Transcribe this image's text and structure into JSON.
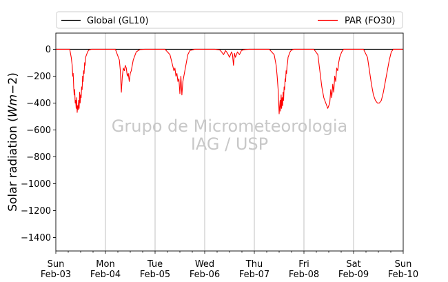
{
  "chart_data": {
    "type": "line",
    "ylabel": "Solar radiation ($Wm−2$)",
    "ylabel_text": "Solar radiation (",
    "ylabel_math": "Wm",
    "ylabel_math_suffix": "−2",
    "ylabel_close": ")",
    "ylim": [
      -1500,
      120
    ],
    "xlim": [
      "2019-02-03",
      "2019-02-10"
    ],
    "y_ticks": [
      0,
      -200,
      -400,
      -600,
      -800,
      -1000,
      -1200,
      -1400
    ],
    "y_tick_labels": [
      "0",
      "−200",
      "−400",
      "−600",
      "−800",
      "−1000",
      "−1200",
      "−1400"
    ],
    "x_ticks": [
      {
        "day": "Sun",
        "date": "Feb-03"
      },
      {
        "day": "Mon",
        "date": "Feb-04"
      },
      {
        "day": "Tue",
        "date": "Feb-05"
      },
      {
        "day": "Wed",
        "date": "Feb-06"
      },
      {
        "day": "Thu",
        "date": "Feb-07"
      },
      {
        "day": "Fri",
        "date": "Feb-08"
      },
      {
        "day": "Sat",
        "date": "Feb-09"
      },
      {
        "day": "Sun",
        "date": "Feb-10"
      }
    ],
    "grid": "vertical-major",
    "legend_placement": "top-outside",
    "watermark": [
      "Grupo de Micrometeorologia",
      "IAG / USP"
    ],
    "series": [
      {
        "name": "Global (GL10)",
        "color": "#000000",
        "x_days": [
          0,
          7
        ],
        "y": [
          0,
          0
        ]
      },
      {
        "name": "PAR (FO30)",
        "color": "#ff0000",
        "x_days": [
          0,
          0.28,
          0.31,
          0.33,
          0.34,
          0.35,
          0.36,
          0.37,
          0.38,
          0.39,
          0.4,
          0.41,
          0.42,
          0.43,
          0.44,
          0.45,
          0.46,
          0.47,
          0.48,
          0.49,
          0.5,
          0.51,
          0.52,
          0.53,
          0.54,
          0.55,
          0.56,
          0.57,
          0.58,
          0.59,
          0.6,
          0.62,
          0.64,
          0.66,
          0.68,
          0.7,
          0.72,
          0.8,
          1.2,
          1.28,
          1.3,
          1.32,
          1.34,
          1.36,
          1.38,
          1.4,
          1.42,
          1.44,
          1.46,
          1.48,
          1.5,
          1.52,
          1.54,
          1.56,
          1.58,
          1.6,
          1.62,
          1.66,
          1.7,
          1.8,
          2.2,
          2.3,
          2.34,
          2.38,
          2.4,
          2.42,
          2.44,
          2.46,
          2.48,
          2.5,
          2.52,
          2.54,
          2.56,
          2.58,
          2.6,
          2.62,
          2.64,
          2.66,
          2.7,
          2.8,
          3.2,
          3.3,
          3.34,
          3.38,
          3.42,
          3.46,
          3.5,
          3.54,
          3.56,
          3.58,
          3.6,
          3.62,
          3.66,
          3.7,
          3.74,
          3.78,
          3.82,
          3.9,
          4.2,
          4.3,
          4.4,
          4.44,
          4.46,
          4.48,
          4.5,
          4.52,
          4.53,
          4.54,
          4.55,
          4.56,
          4.57,
          4.58,
          4.59,
          4.6,
          4.61,
          4.62,
          4.63,
          4.64,
          4.65,
          4.66,
          4.67,
          4.68,
          4.7,
          4.72,
          4.74,
          4.76,
          4.8,
          5.2,
          5.28,
          5.32,
          5.36,
          5.4,
          5.44,
          5.48,
          5.52,
          5.54,
          5.56,
          5.58,
          5.6,
          5.62,
          5.64,
          5.66,
          5.68,
          5.7,
          5.72,
          5.76,
          5.8,
          6.2,
          6.28,
          6.32,
          6.36,
          6.4,
          6.44,
          6.48,
          6.52,
          6.56,
          6.6,
          6.64,
          6.68,
          6.72,
          6.76,
          6.8,
          7.0
        ],
        "y": [
          0,
          0,
          -60,
          -120,
          -200,
          -180,
          -280,
          -340,
          -300,
          -400,
          -380,
          -440,
          -360,
          -470,
          -420,
          -450,
          -380,
          -440,
          -320,
          -400,
          -340,
          -360,
          -280,
          -300,
          -200,
          -240,
          -160,
          -180,
          -100,
          -120,
          -60,
          -40,
          -20,
          -8,
          -4,
          -2,
          0,
          0,
          0,
          -80,
          -160,
          -320,
          -200,
          -140,
          -160,
          -120,
          -140,
          -200,
          -180,
          -240,
          -180,
          -160,
          -120,
          -80,
          -60,
          -40,
          -20,
          -10,
          -2,
          0,
          0,
          -40,
          -100,
          -160,
          -140,
          -200,
          -180,
          -240,
          -220,
          -330,
          -200,
          -340,
          -240,
          -200,
          -160,
          -120,
          -80,
          -40,
          -10,
          0,
          0,
          -4,
          -20,
          -40,
          -10,
          -30,
          -60,
          -20,
          -40,
          -120,
          -30,
          -60,
          -20,
          -40,
          -10,
          -4,
          -2,
          0,
          0,
          0,
          -40,
          -120,
          -200,
          -300,
          -480,
          -380,
          -460,
          -340,
          -440,
          -360,
          -420,
          -320,
          -380,
          -280,
          -300,
          -220,
          -240,
          -160,
          -180,
          -120,
          -100,
          -60,
          -40,
          -20,
          -10,
          -4,
          0,
          0,
          -40,
          -160,
          -280,
          -360,
          -400,
          -440,
          -400,
          -300,
          -360,
          -260,
          -320,
          -200,
          -240,
          -140,
          -160,
          -100,
          -60,
          -20,
          0,
          0,
          -60,
          -160,
          -260,
          -340,
          -380,
          -400,
          -400,
          -380,
          -320,
          -240,
          -160,
          -80,
          -20,
          0,
          0
        ]
      }
    ]
  }
}
